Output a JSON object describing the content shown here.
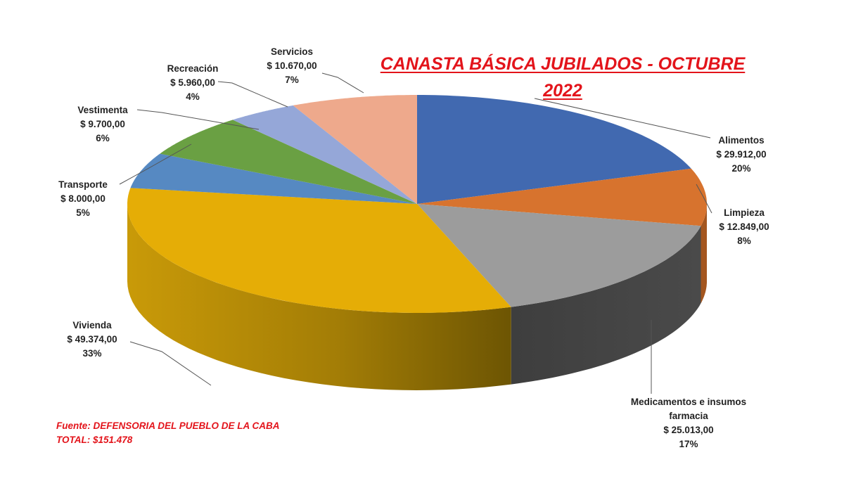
{
  "title": {
    "line1": "CANASTA BÁSICA JUBILADOS - OCTUBRE",
    "line2": "2022"
  },
  "footer": {
    "source": "Fuente: DEFENSORIA  DEL PUEBLO DE LA CABA",
    "total": "TOTAL: $151.478"
  },
  "chart_data": {
    "type": "pie",
    "variant": "3d",
    "title": "CANASTA BÁSICA JUBILADOS - OCTUBRE 2022",
    "currency": "$",
    "total": 151478,
    "categories": [
      "Alimentos",
      "Limpieza",
      "Medicamentos e insumos farmacia",
      "Vivienda",
      "Transporte",
      "Vestimenta",
      "Recreación",
      "Servicios"
    ],
    "values": [
      29912.0,
      12849.0,
      25013.0,
      49374.0,
      8000.0,
      9700.0,
      5960.0,
      10670.0
    ],
    "percent_labels": [
      "20%",
      "8%",
      "17%",
      "33%",
      "5%",
      "6%",
      "4%",
      "7%"
    ],
    "value_labels": [
      "$ 29.912,00",
      "$ 12.849,00",
      "$ 25.013,00",
      "$ 49.374,00",
      "$ 8.000,00",
      "$ 9.700,00",
      "$ 5.960,00",
      "$ 10.670,00"
    ],
    "colors": [
      "#4169b0",
      "#d7732e",
      "#9c9c9c",
      "#e5ad06",
      "#5689c2",
      "#6aa043",
      "#95a7d8",
      "#eea98c"
    ],
    "start_angle": "12 o'clock, clockwise",
    "legend": "none (data labels with leader lines)",
    "source": "Fuente: DEFENSORIA DEL PUEBLO DE LA CABA",
    "annotation": "TOTAL: $151.478"
  },
  "labels": [
    {
      "name": "Alimentos",
      "value": "$ 29.912,00",
      "pct": "20%"
    },
    {
      "name": "Limpieza",
      "value": "$ 12.849,00",
      "pct": "8%"
    },
    {
      "name": "Medicamentos e insumos",
      "name2": "farmacia",
      "value": "$ 25.013,00",
      "pct": "17%"
    },
    {
      "name": "Vivienda",
      "value": "$ 49.374,00",
      "pct": "33%"
    },
    {
      "name": "Transporte",
      "value": "$ 8.000,00",
      "pct": "5%"
    },
    {
      "name": "Vestimenta",
      "value": "$ 9.700,00",
      "pct": "6%"
    },
    {
      "name": "Recreación",
      "value": "$ 5.960,00",
      "pct": "4%"
    },
    {
      "name": "Servicios",
      "value": "$ 10.670,00",
      "pct": "7%"
    }
  ]
}
